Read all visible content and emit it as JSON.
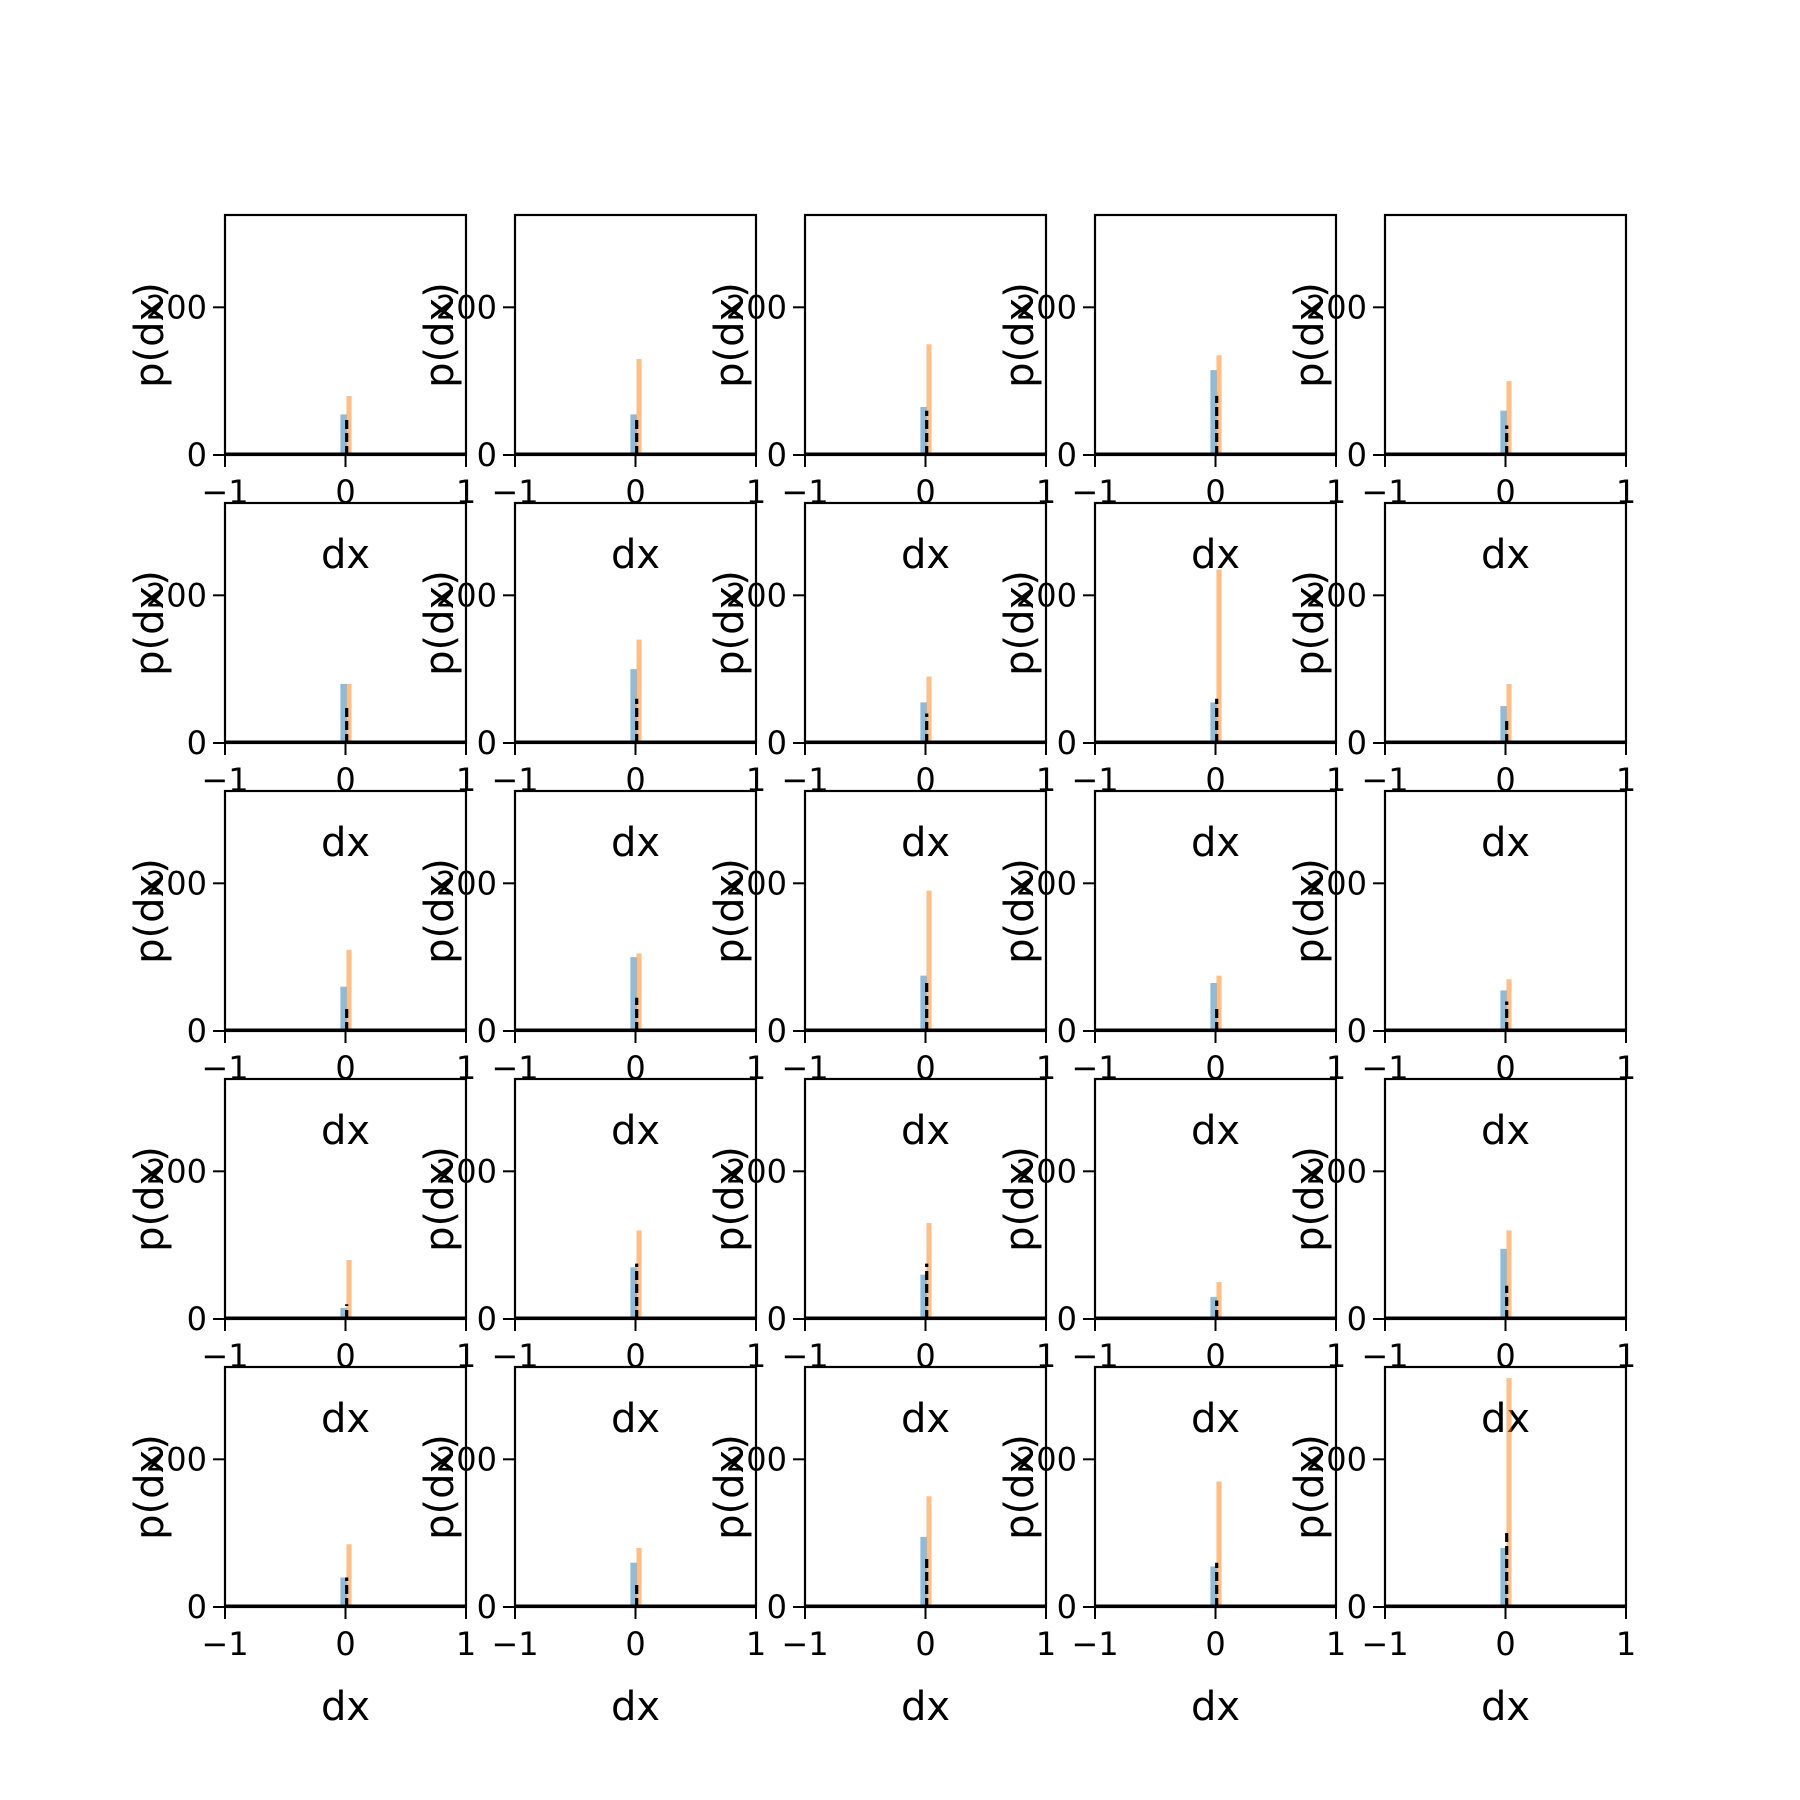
{
  "figure": {
    "rows": 5,
    "cols": 5,
    "colors": {
      "series_blue": "#1f77b4",
      "series_orange": "#ff7f0e",
      "series_black": "#000000",
      "axes": "#000000",
      "background": "#ffffff"
    }
  },
  "chart_data": [
    {
      "type": "histogram",
      "row": 1,
      "col": 1,
      "xlabel": "dx",
      "ylabel": "p(dx)",
      "xlim": [
        -1,
        1
      ],
      "ylim": [
        0,
        325
      ],
      "xticks": [
        "−1",
        "0",
        "1"
      ],
      "yticks": [
        "0",
        "200"
      ],
      "peaks": {
        "blue": 55,
        "orange": 80,
        "black": 50
      }
    },
    {
      "type": "histogram",
      "row": 1,
      "col": 2,
      "xlabel": "dx",
      "ylabel": "p(dx)",
      "xlim": [
        -1,
        1
      ],
      "ylim": [
        0,
        325
      ],
      "xticks": [
        "−1",
        "0",
        "1"
      ],
      "yticks": [
        "0",
        "200"
      ],
      "peaks": {
        "blue": 55,
        "orange": 130,
        "black": 50
      }
    },
    {
      "type": "histogram",
      "row": 1,
      "col": 3,
      "xlabel": "dx",
      "ylabel": "p(dx)",
      "xlim": [
        -1,
        1
      ],
      "ylim": [
        0,
        325
      ],
      "xticks": [
        "−1",
        "0",
        "1"
      ],
      "yticks": [
        "0",
        "200"
      ],
      "peaks": {
        "blue": 65,
        "orange": 150,
        "black": 60
      }
    },
    {
      "type": "histogram",
      "row": 1,
      "col": 4,
      "xlabel": "dx",
      "ylabel": "p(dx)",
      "xlim": [
        -1,
        1
      ],
      "ylim": [
        0,
        325
      ],
      "xticks": [
        "−1",
        "0",
        "1"
      ],
      "yticks": [
        "0",
        "200"
      ],
      "peaks": {
        "blue": 115,
        "orange": 135,
        "black": 80
      }
    },
    {
      "type": "histogram",
      "row": 1,
      "col": 5,
      "xlabel": "dx",
      "ylabel": "p(dx)",
      "xlim": [
        -1,
        1
      ],
      "ylim": [
        0,
        325
      ],
      "xticks": [
        "−1",
        "0",
        "1"
      ],
      "yticks": [
        "0",
        "200"
      ],
      "peaks": {
        "blue": 60,
        "orange": 100,
        "black": 40
      }
    },
    {
      "type": "histogram",
      "row": 2,
      "col": 1,
      "xlabel": "dx",
      "ylabel": "p(dx)",
      "xlim": [
        -1,
        1
      ],
      "ylim": [
        0,
        325
      ],
      "xticks": [
        "−1",
        "0",
        "1"
      ],
      "yticks": [
        "0",
        "200"
      ],
      "peaks": {
        "blue": 80,
        "orange": 80,
        "black": 50
      }
    },
    {
      "type": "histogram",
      "row": 2,
      "col": 2,
      "xlabel": "dx",
      "ylabel": "p(dx)",
      "xlim": [
        -1,
        1
      ],
      "ylim": [
        0,
        325
      ],
      "xticks": [
        "−1",
        "0",
        "1"
      ],
      "yticks": [
        "0",
        "200"
      ],
      "peaks": {
        "blue": 100,
        "orange": 140,
        "black": 60
      }
    },
    {
      "type": "histogram",
      "row": 2,
      "col": 3,
      "xlabel": "dx",
      "ylabel": "p(dx)",
      "xlim": [
        -1,
        1
      ],
      "ylim": [
        0,
        325
      ],
      "xticks": [
        "−1",
        "0",
        "1"
      ],
      "yticks": [
        "0",
        "200"
      ],
      "peaks": {
        "blue": 55,
        "orange": 90,
        "black": 40
      }
    },
    {
      "type": "histogram",
      "row": 2,
      "col": 4,
      "xlabel": "dx",
      "ylabel": "p(dx)",
      "xlim": [
        -1,
        1
      ],
      "ylim": [
        0,
        325
      ],
      "xticks": [
        "−1",
        "0",
        "1"
      ],
      "yticks": [
        "0",
        "200"
      ],
      "peaks": {
        "blue": 55,
        "orange": 235,
        "black": 60
      }
    },
    {
      "type": "histogram",
      "row": 2,
      "col": 5,
      "xlabel": "dx",
      "ylabel": "p(dx)",
      "xlim": [
        -1,
        1
      ],
      "ylim": [
        0,
        325
      ],
      "xticks": [
        "−1",
        "0",
        "1"
      ],
      "yticks": [
        "0",
        "200"
      ],
      "peaks": {
        "blue": 50,
        "orange": 80,
        "black": 35
      }
    },
    {
      "type": "histogram",
      "row": 3,
      "col": 1,
      "xlabel": "dx",
      "ylabel": "p(dx)",
      "xlim": [
        -1,
        1
      ],
      "ylim": [
        0,
        325
      ],
      "xticks": [
        "−1",
        "0",
        "1"
      ],
      "yticks": [
        "0",
        "200"
      ],
      "peaks": {
        "blue": 60,
        "orange": 110,
        "black": 35
      }
    },
    {
      "type": "histogram",
      "row": 3,
      "col": 2,
      "xlabel": "dx",
      "ylabel": "p(dx)",
      "xlim": [
        -1,
        1
      ],
      "ylim": [
        0,
        325
      ],
      "xticks": [
        "−1",
        "0",
        "1"
      ],
      "yticks": [
        "0",
        "200"
      ],
      "peaks": {
        "blue": 100,
        "orange": 105,
        "black": 45
      }
    },
    {
      "type": "histogram",
      "row": 3,
      "col": 3,
      "xlabel": "dx",
      "ylabel": "p(dx)",
      "xlim": [
        -1,
        1
      ],
      "ylim": [
        0,
        325
      ],
      "xticks": [
        "−1",
        "0",
        "1"
      ],
      "yticks": [
        "0",
        "200"
      ],
      "peaks": {
        "blue": 75,
        "orange": 190,
        "black": 65
      }
    },
    {
      "type": "histogram",
      "row": 3,
      "col": 4,
      "xlabel": "dx",
      "ylabel": "p(dx)",
      "xlim": [
        -1,
        1
      ],
      "ylim": [
        0,
        325
      ],
      "xticks": [
        "−1",
        "0",
        "1"
      ],
      "yticks": [
        "0",
        "200"
      ],
      "peaks": {
        "blue": 65,
        "orange": 75,
        "black": 30
      }
    },
    {
      "type": "histogram",
      "row": 3,
      "col": 5,
      "xlabel": "dx",
      "ylabel": "p(dx)",
      "xlim": [
        -1,
        1
      ],
      "ylim": [
        0,
        325
      ],
      "xticks": [
        "−1",
        "0",
        "1"
      ],
      "yticks": [
        "0",
        "200"
      ],
      "peaks": {
        "blue": 55,
        "orange": 70,
        "black": 40
      }
    },
    {
      "type": "histogram",
      "row": 4,
      "col": 1,
      "xlabel": "dx",
      "ylabel": "p(dx)",
      "xlim": [
        -1,
        1
      ],
      "ylim": [
        0,
        325
      ],
      "xticks": [
        "−1",
        "0",
        "1"
      ],
      "yticks": [
        "0",
        "200"
      ],
      "peaks": {
        "blue": 15,
        "orange": 80,
        "black": 20
      }
    },
    {
      "type": "histogram",
      "row": 4,
      "col": 2,
      "xlabel": "dx",
      "ylabel": "p(dx)",
      "xlim": [
        -1,
        1
      ],
      "ylim": [
        0,
        325
      ],
      "xticks": [
        "−1",
        "0",
        "1"
      ],
      "yticks": [
        "0",
        "200"
      ],
      "peaks": {
        "blue": 70,
        "orange": 120,
        "black": 75
      }
    },
    {
      "type": "histogram",
      "row": 4,
      "col": 3,
      "xlabel": "dx",
      "ylabel": "p(dx)",
      "xlim": [
        -1,
        1
      ],
      "ylim": [
        0,
        325
      ],
      "xticks": [
        "−1",
        "0",
        "1"
      ],
      "yticks": [
        "0",
        "200"
      ],
      "peaks": {
        "blue": 60,
        "orange": 130,
        "black": 75
      }
    },
    {
      "type": "histogram",
      "row": 4,
      "col": 4,
      "xlabel": "dx",
      "ylabel": "p(dx)",
      "xlim": [
        -1,
        1
      ],
      "ylim": [
        0,
        325
      ],
      "xticks": [
        "−1",
        "0",
        "1"
      ],
      "yticks": [
        "0",
        "200"
      ],
      "peaks": {
        "blue": 30,
        "orange": 50,
        "black": 25
      }
    },
    {
      "type": "histogram",
      "row": 4,
      "col": 5,
      "xlabel": "dx",
      "ylabel": "p(dx)",
      "xlim": [
        -1,
        1
      ],
      "ylim": [
        0,
        325
      ],
      "xticks": [
        "−1",
        "0",
        "1"
      ],
      "yticks": [
        "0",
        "200"
      ],
      "peaks": {
        "blue": 95,
        "orange": 120,
        "black": 45
      }
    },
    {
      "type": "histogram",
      "row": 5,
      "col": 1,
      "xlabel": "dx",
      "ylabel": "p(dx)",
      "xlim": [
        -1,
        1
      ],
      "ylim": [
        0,
        325
      ],
      "xticks": [
        "−1",
        "0",
        "1"
      ],
      "yticks": [
        "0",
        "200"
      ],
      "peaks": {
        "blue": 40,
        "orange": 85,
        "black": 40
      }
    },
    {
      "type": "histogram",
      "row": 5,
      "col": 2,
      "xlabel": "dx",
      "ylabel": "p(dx)",
      "xlim": [
        -1,
        1
      ],
      "ylim": [
        0,
        325
      ],
      "xticks": [
        "−1",
        "0",
        "1"
      ],
      "yticks": [
        "0",
        "200"
      ],
      "peaks": {
        "blue": 60,
        "orange": 80,
        "black": 35
      }
    },
    {
      "type": "histogram",
      "row": 5,
      "col": 3,
      "xlabel": "dx",
      "ylabel": "p(dx)",
      "xlim": [
        -1,
        1
      ],
      "ylim": [
        0,
        325
      ],
      "xticks": [
        "−1",
        "0",
        "1"
      ],
      "yticks": [
        "0",
        "200"
      ],
      "peaks": {
        "blue": 95,
        "orange": 150,
        "black": 70
      }
    },
    {
      "type": "histogram",
      "row": 5,
      "col": 4,
      "xlabel": "dx",
      "ylabel": "p(dx)",
      "xlim": [
        -1,
        1
      ],
      "ylim": [
        0,
        325
      ],
      "xticks": [
        "−1",
        "0",
        "1"
      ],
      "yticks": [
        "0",
        "200"
      ],
      "peaks": {
        "blue": 55,
        "orange": 170,
        "black": 60
      }
    },
    {
      "type": "histogram",
      "row": 5,
      "col": 5,
      "xlabel": "dx",
      "ylabel": "p(dx)",
      "xlim": [
        -1,
        1
      ],
      "ylim": [
        0,
        325
      ],
      "xticks": [
        "−1",
        "0",
        "1"
      ],
      "yticks": [
        "0",
        "200"
      ],
      "peaks": {
        "blue": 80,
        "orange": 310,
        "black": 105
      }
    }
  ]
}
